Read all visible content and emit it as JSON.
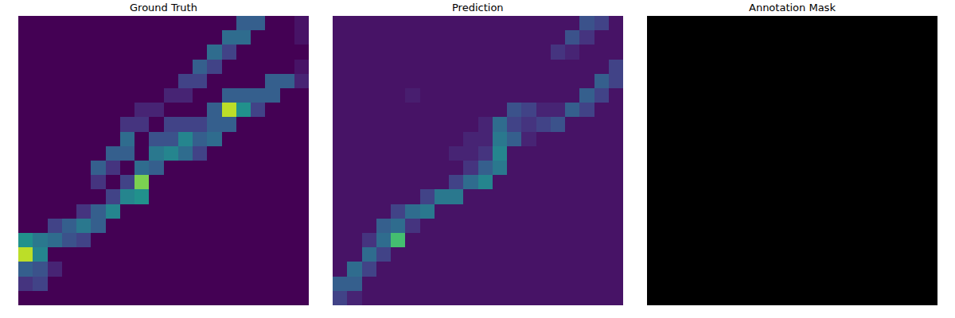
{
  "chart_data": [
    {
      "type": "heatmap",
      "title": "Ground Truth",
      "color": "viridis",
      "tick_labels": false,
      "zlim": [
        0,
        1
      ],
      "cells": [
        [
          0,
          0,
          0,
          0,
          0,
          0,
          0,
          0,
          0,
          0,
          0,
          0,
          0,
          0,
          0,
          0.3,
          0.3,
          0,
          0,
          0.05
        ],
        [
          0,
          0,
          0,
          0,
          0,
          0,
          0,
          0,
          0,
          0,
          0,
          0,
          0,
          0,
          0.35,
          0.35,
          0,
          0,
          0,
          0.05
        ],
        [
          0,
          0,
          0,
          0,
          0,
          0,
          0,
          0,
          0,
          0,
          0,
          0,
          0,
          0.35,
          0.2,
          0,
          0,
          0,
          0,
          0
        ],
        [
          0,
          0,
          0,
          0,
          0,
          0,
          0,
          0,
          0,
          0,
          0,
          0,
          0.3,
          0.2,
          0,
          0,
          0,
          0,
          0,
          0.05
        ],
        [
          0,
          0,
          0,
          0,
          0,
          0,
          0,
          0,
          0,
          0,
          0,
          0.2,
          0.2,
          0,
          0,
          0,
          0,
          0.3,
          0.3,
          0.1
        ],
        [
          0,
          0,
          0,
          0,
          0,
          0,
          0,
          0,
          0,
          0,
          0.1,
          0.1,
          0,
          0,
          0.3,
          0.3,
          0.3,
          0.3,
          0,
          0
        ],
        [
          0,
          0,
          0,
          0,
          0,
          0,
          0,
          0,
          0.1,
          0.1,
          0,
          0,
          0,
          0.3,
          0.9,
          0.5,
          0.2,
          0,
          0,
          0
        ],
        [
          0,
          0,
          0,
          0,
          0,
          0,
          0,
          0.15,
          0.15,
          0,
          0.2,
          0.2,
          0.2,
          0.3,
          0.3,
          0,
          0,
          0,
          0,
          0
        ],
        [
          0,
          0,
          0,
          0,
          0,
          0,
          0,
          0.35,
          0,
          0.25,
          0.25,
          0.45,
          0.3,
          0.35,
          0,
          0,
          0,
          0,
          0,
          0
        ],
        [
          0,
          0,
          0,
          0,
          0,
          0,
          0.3,
          0.3,
          0,
          0.4,
          0.45,
          0.35,
          0.2,
          0,
          0,
          0,
          0,
          0,
          0,
          0
        ],
        [
          0,
          0,
          0,
          0,
          0,
          0.3,
          0.15,
          0,
          0.35,
          0.3,
          0,
          0,
          0,
          0,
          0,
          0,
          0,
          0,
          0,
          0
        ],
        [
          0,
          0,
          0,
          0,
          0,
          0.15,
          0,
          0.2,
          0.8,
          0,
          0,
          0,
          0,
          0,
          0,
          0,
          0,
          0,
          0,
          0
        ],
        [
          0,
          0,
          0,
          0,
          0,
          0,
          0.2,
          0.45,
          0.5,
          0,
          0,
          0,
          0,
          0,
          0,
          0,
          0,
          0,
          0,
          0
        ],
        [
          0,
          0,
          0,
          0,
          0.15,
          0.3,
          0.45,
          0,
          0,
          0,
          0,
          0,
          0,
          0,
          0,
          0,
          0,
          0,
          0,
          0
        ],
        [
          0,
          0,
          0.2,
          0.3,
          0.4,
          0.3,
          0,
          0,
          0,
          0,
          0,
          0,
          0,
          0,
          0,
          0,
          0,
          0,
          0,
          0
        ],
        [
          0.5,
          0.4,
          0.35,
          0.25,
          0.2,
          0,
          0,
          0,
          0,
          0,
          0,
          0,
          0,
          0,
          0,
          0,
          0,
          0,
          0,
          0
        ],
        [
          0.9,
          0.45,
          0,
          0,
          0,
          0,
          0,
          0,
          0,
          0,
          0,
          0,
          0,
          0,
          0,
          0,
          0,
          0,
          0,
          0
        ],
        [
          0.3,
          0.25,
          0.1,
          0,
          0,
          0,
          0,
          0,
          0,
          0,
          0,
          0,
          0,
          0,
          0,
          0,
          0,
          0,
          0,
          0
        ],
        [
          0.15,
          0.2,
          0,
          0,
          0,
          0,
          0,
          0,
          0,
          0,
          0,
          0,
          0,
          0,
          0,
          0,
          0,
          0,
          0,
          0
        ],
        [
          0,
          0,
          0,
          0,
          0,
          0,
          0,
          0,
          0,
          0,
          0,
          0,
          0,
          0,
          0,
          0,
          0,
          0,
          0,
          0
        ]
      ]
    },
    {
      "type": "heatmap",
      "title": "Prediction",
      "color": "viridis",
      "tick_labels": false,
      "zlim": [
        0,
        1
      ],
      "cells": [
        [
          0.05,
          0.05,
          0.05,
          0.05,
          0.05,
          0.05,
          0.05,
          0.05,
          0.05,
          0.05,
          0.05,
          0.05,
          0.05,
          0.05,
          0.05,
          0.05,
          0.05,
          0.25,
          0.2,
          0.05
        ],
        [
          0.05,
          0.05,
          0.05,
          0.05,
          0.05,
          0.05,
          0.05,
          0.05,
          0.05,
          0.05,
          0.05,
          0.05,
          0.05,
          0.05,
          0.05,
          0.05,
          0.25,
          0.15,
          0.05,
          0.05
        ],
        [
          0.05,
          0.05,
          0.05,
          0.05,
          0.05,
          0.05,
          0.05,
          0.05,
          0.05,
          0.05,
          0.05,
          0.05,
          0.05,
          0.05,
          0.05,
          0.15,
          0.1,
          0.05,
          0.05,
          0.05
        ],
        [
          0.05,
          0.05,
          0.05,
          0.05,
          0.05,
          0.05,
          0.05,
          0.05,
          0.05,
          0.05,
          0.05,
          0.05,
          0.05,
          0.05,
          0.05,
          0.05,
          0.05,
          0.05,
          0.05,
          0.2
        ],
        [
          0.05,
          0.05,
          0.05,
          0.05,
          0.05,
          0.05,
          0.05,
          0.05,
          0.05,
          0.05,
          0.05,
          0.05,
          0.05,
          0.05,
          0.05,
          0.05,
          0.05,
          0.05,
          0.3,
          0.2
        ],
        [
          0.05,
          0.05,
          0.05,
          0.05,
          0.05,
          0.08,
          0.05,
          0.05,
          0.05,
          0.05,
          0.05,
          0.05,
          0.05,
          0.05,
          0.05,
          0.05,
          0.05,
          0.3,
          0.2,
          0.05
        ],
        [
          0.05,
          0.05,
          0.05,
          0.05,
          0.05,
          0.05,
          0.05,
          0.05,
          0.05,
          0.05,
          0.05,
          0.05,
          0.25,
          0.2,
          0.1,
          0.1,
          0.3,
          0.2,
          0.05,
          0.05
        ],
        [
          0.05,
          0.05,
          0.05,
          0.05,
          0.05,
          0.05,
          0.05,
          0.05,
          0.05,
          0.05,
          0.1,
          0.35,
          0.2,
          0.15,
          0.2,
          0.25,
          0.05,
          0.05,
          0.05,
          0.05
        ],
        [
          0.05,
          0.05,
          0.05,
          0.05,
          0.05,
          0.05,
          0.05,
          0.05,
          0.05,
          0.1,
          0.1,
          0.4,
          0.3,
          0.1,
          0.05,
          0.05,
          0.05,
          0.05,
          0.05,
          0.05
        ],
        [
          0.05,
          0.05,
          0.05,
          0.05,
          0.05,
          0.05,
          0.05,
          0.05,
          0.1,
          0.1,
          0.15,
          0.45,
          0.05,
          0.05,
          0.05,
          0.05,
          0.05,
          0.05,
          0.05,
          0.05
        ],
        [
          0.05,
          0.05,
          0.05,
          0.05,
          0.05,
          0.05,
          0.05,
          0.05,
          0.05,
          0.15,
          0.3,
          0.4,
          0.05,
          0.05,
          0.05,
          0.05,
          0.05,
          0.05,
          0.05,
          0.05
        ],
        [
          0.05,
          0.05,
          0.05,
          0.05,
          0.05,
          0.05,
          0.05,
          0.05,
          0.2,
          0.35,
          0.45,
          0.05,
          0.05,
          0.05,
          0.05,
          0.05,
          0.05,
          0.05,
          0.05,
          0.05
        ],
        [
          0.05,
          0.05,
          0.05,
          0.05,
          0.05,
          0.05,
          0.2,
          0.4,
          0.4,
          0.05,
          0.05,
          0.05,
          0.05,
          0.05,
          0.05,
          0.05,
          0.05,
          0.05,
          0.05,
          0.05
        ],
        [
          0.05,
          0.05,
          0.05,
          0.05,
          0.2,
          0.35,
          0.4,
          0.05,
          0.05,
          0.05,
          0.05,
          0.05,
          0.05,
          0.05,
          0.05,
          0.05,
          0.05,
          0.05,
          0.05,
          0.05
        ],
        [
          0.05,
          0.05,
          0.05,
          0.3,
          0.35,
          0.15,
          0.05,
          0.05,
          0.05,
          0.05,
          0.05,
          0.05,
          0.05,
          0.05,
          0.05,
          0.05,
          0.05,
          0.05,
          0.05,
          0.05
        ],
        [
          0.05,
          0.05,
          0.15,
          0.35,
          0.7,
          0.05,
          0.05,
          0.05,
          0.05,
          0.05,
          0.05,
          0.05,
          0.05,
          0.05,
          0.05,
          0.05,
          0.05,
          0.05,
          0.05,
          0.05
        ],
        [
          0.05,
          0.05,
          0.35,
          0.2,
          0.05,
          0.05,
          0.05,
          0.05,
          0.05,
          0.05,
          0.05,
          0.05,
          0.05,
          0.05,
          0.05,
          0.05,
          0.05,
          0.05,
          0.05,
          0.05
        ],
        [
          0.05,
          0.35,
          0.2,
          0.05,
          0.05,
          0.05,
          0.05,
          0.05,
          0.05,
          0.05,
          0.05,
          0.05,
          0.05,
          0.05,
          0.05,
          0.05,
          0.05,
          0.05,
          0.05,
          0.05
        ],
        [
          0.3,
          0.3,
          0.05,
          0.05,
          0.05,
          0.05,
          0.05,
          0.05,
          0.05,
          0.05,
          0.05,
          0.05,
          0.05,
          0.05,
          0.05,
          0.05,
          0.05,
          0.05,
          0.05,
          0.05
        ],
        [
          0.2,
          0.1,
          0.05,
          0.05,
          0.05,
          0.05,
          0.05,
          0.05,
          0.05,
          0.05,
          0.05,
          0.05,
          0.05,
          0.05,
          0.05,
          0.05,
          0.05,
          0.05,
          0.05,
          0.05
        ]
      ]
    },
    {
      "type": "heatmap",
      "title": "Annotation Mask",
      "color": "gray",
      "tick_labels": false,
      "zlim": [
        0,
        1
      ],
      "cells": [
        [
          0,
          0,
          0,
          0
        ],
        [
          0,
          0,
          0,
          0
        ],
        [
          0,
          0,
          0,
          0
        ],
        [
          0,
          0,
          0,
          0
        ]
      ]
    }
  ]
}
